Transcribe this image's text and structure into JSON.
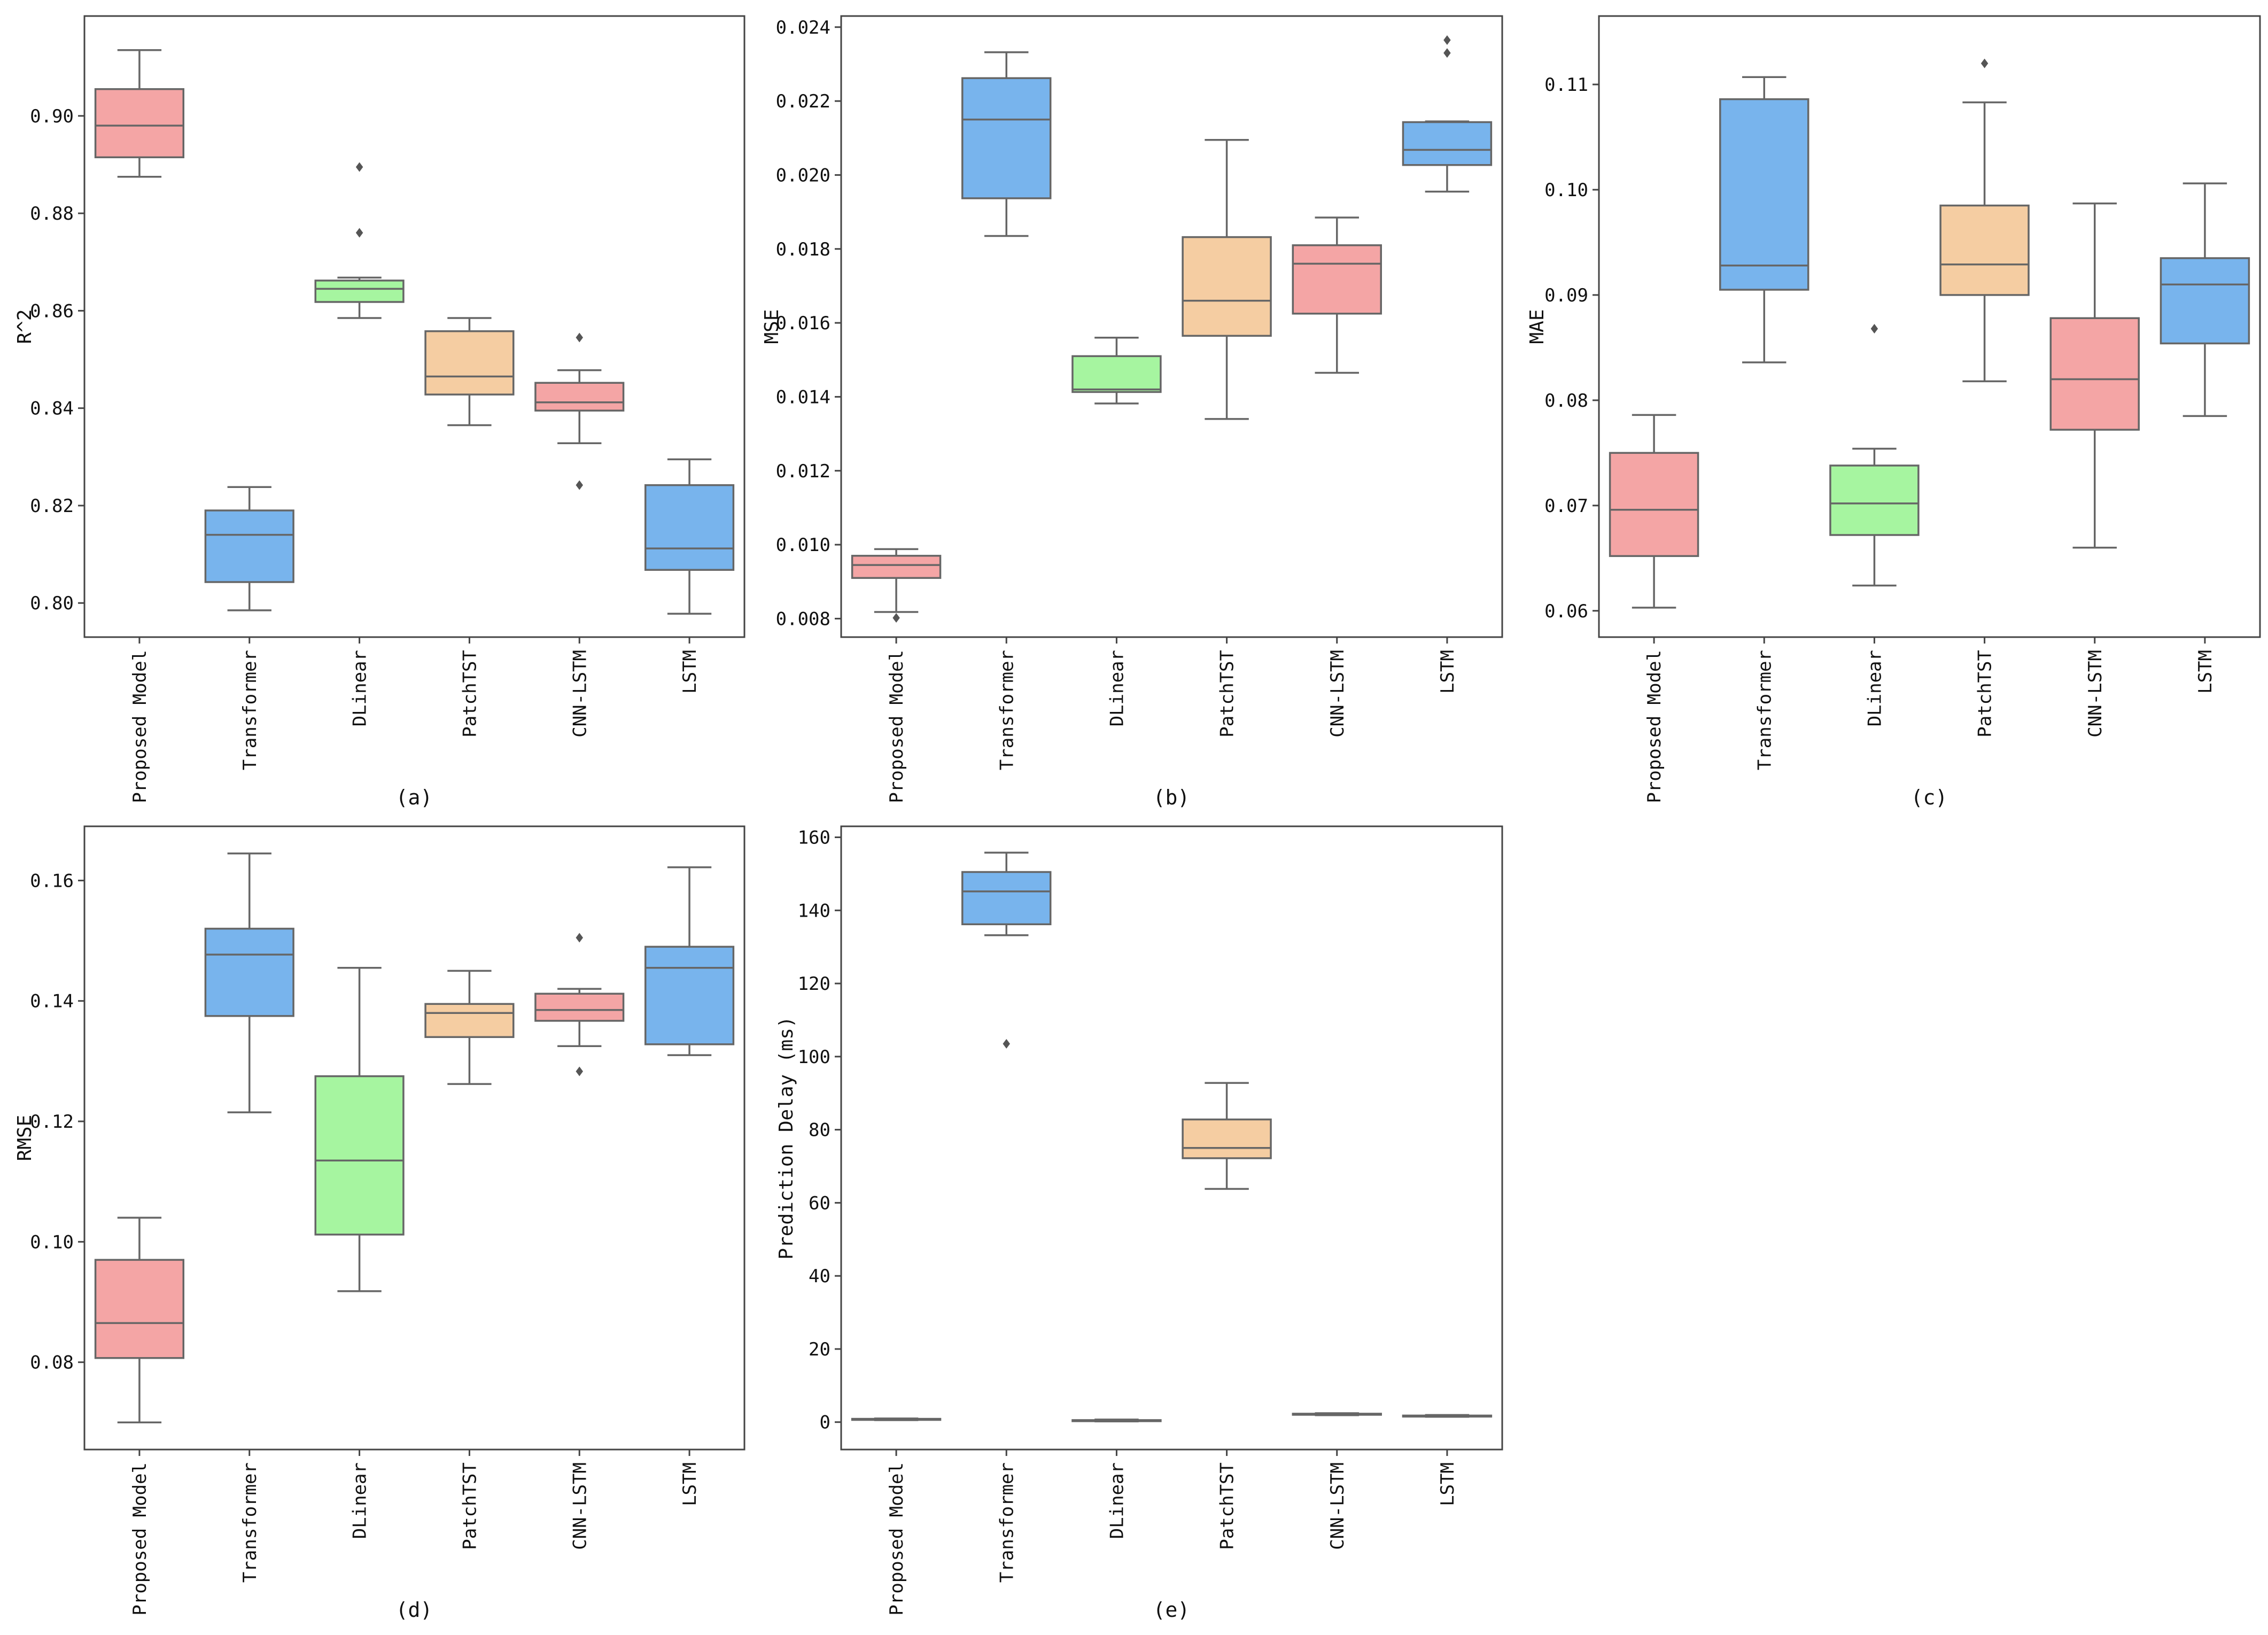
{
  "colors": {
    "red": "#f4a5a5",
    "blue": "#78b4ed",
    "green": "#a6f5a0",
    "orange": "#f5cda2",
    "line": "#666666",
    "frame": "#444444"
  },
  "chart_data": [
    {
      "type": "box",
      "caption": "(a)",
      "ylabel": "R^2",
      "ylim": [
        0.793,
        0.9205
      ],
      "yticks": [
        0.8,
        0.82,
        0.84,
        0.86,
        0.88,
        0.9
      ],
      "ytick_labels": [
        "0.80",
        "0.82",
        "0.84",
        "0.86",
        "0.88",
        "0.90"
      ],
      "categories": [
        "Proposed Model",
        "Transformer",
        "DLinear",
        "PatchTST",
        "CNN-LSTM",
        "LSTM"
      ],
      "boxes": [
        {
          "category": "Proposed Model",
          "color": "red",
          "whislo": 0.8875,
          "q1": 0.8915,
          "med": 0.898,
          "q3": 0.9055,
          "whishi": 0.9135,
          "fliers": []
        },
        {
          "category": "Transformer",
          "color": "blue",
          "whislo": 0.7985,
          "q1": 0.8043,
          "med": 0.814,
          "q3": 0.819,
          "whishi": 0.8238,
          "fliers": []
        },
        {
          "category": "DLinear",
          "color": "green",
          "whislo": 0.8585,
          "q1": 0.8618,
          "med": 0.8645,
          "q3": 0.8662,
          "whishi": 0.8668,
          "fliers": [
            0.8895,
            0.876
          ]
        },
        {
          "category": "PatchTST",
          "color": "orange",
          "whislo": 0.8365,
          "q1": 0.8428,
          "med": 0.8465,
          "q3": 0.8558,
          "whishi": 0.8585,
          "fliers": []
        },
        {
          "category": "CNN-LSTM",
          "color": "red",
          "whislo": 0.8328,
          "q1": 0.8395,
          "med": 0.8412,
          "q3": 0.8452,
          "whishi": 0.8478,
          "fliers": [
            0.8545,
            0.8242
          ]
        },
        {
          "category": "LSTM",
          "color": "blue",
          "whislo": 0.7978,
          "q1": 0.8068,
          "med": 0.8112,
          "q3": 0.8242,
          "whishi": 0.8295,
          "fliers": []
        }
      ]
    },
    {
      "type": "box",
      "caption": "(b)",
      "ylabel": "MSE",
      "ylim": [
        0.0075,
        0.0243
      ],
      "yticks": [
        0.008,
        0.01,
        0.012,
        0.014,
        0.016,
        0.018,
        0.02,
        0.022,
        0.024
      ],
      "ytick_labels": [
        "0.008",
        "0.010",
        "0.012",
        "0.014",
        "0.016",
        "0.018",
        "0.020",
        "0.022",
        "0.024"
      ],
      "categories": [
        "Proposed Model",
        "Transformer",
        "DLinear",
        "PatchTST",
        "CNN-LSTM",
        "LSTM"
      ],
      "boxes": [
        {
          "category": "Proposed Model",
          "color": "red",
          "whislo": 0.00818,
          "q1": 0.0091,
          "med": 0.00945,
          "q3": 0.0097,
          "whishi": 0.00988,
          "fliers": [
            0.00802
          ]
        },
        {
          "category": "Transformer",
          "color": "blue",
          "whislo": 0.01835,
          "q1": 0.01937,
          "med": 0.0215,
          "q3": 0.02262,
          "whishi": 0.02332,
          "fliers": []
        },
        {
          "category": "DLinear",
          "color": "green",
          "whislo": 0.01382,
          "q1": 0.01413,
          "med": 0.0142,
          "q3": 0.0151,
          "whishi": 0.0156,
          "fliers": []
        },
        {
          "category": "PatchTST",
          "color": "orange",
          "whislo": 0.0134,
          "q1": 0.01565,
          "med": 0.0166,
          "q3": 0.01832,
          "whishi": 0.02095,
          "fliers": []
        },
        {
          "category": "CNN-LSTM",
          "color": "red",
          "whislo": 0.01465,
          "q1": 0.01625,
          "med": 0.0176,
          "q3": 0.0181,
          "whishi": 0.01885,
          "fliers": []
        },
        {
          "category": "LSTM",
          "color": "blue",
          "whislo": 0.01955,
          "q1": 0.02027,
          "med": 0.02068,
          "q3": 0.02143,
          "whishi": 0.02145,
          "fliers": [
            0.02365,
            0.0233
          ]
        }
      ]
    },
    {
      "type": "box",
      "caption": "(c)",
      "ylabel": "MAE",
      "ylim": [
        0.0575,
        0.1165
      ],
      "yticks": [
        0.06,
        0.07,
        0.08,
        0.09,
        0.1,
        0.11
      ],
      "ytick_labels": [
        "0.06",
        "0.07",
        "0.08",
        "0.09",
        "0.10",
        "0.11"
      ],
      "categories": [
        "Proposed Model",
        "Transformer",
        "DLinear",
        "PatchTST",
        "CNN-LSTM",
        "LSTM"
      ],
      "boxes": [
        {
          "category": "Proposed Model",
          "color": "red",
          "whislo": 0.0603,
          "q1": 0.0652,
          "med": 0.0696,
          "q3": 0.075,
          "whishi": 0.0786,
          "fliers": []
        },
        {
          "category": "Transformer",
          "color": "blue",
          "whislo": 0.0836,
          "q1": 0.0905,
          "med": 0.0928,
          "q3": 0.1086,
          "whishi": 0.1107,
          "fliers": []
        },
        {
          "category": "DLinear",
          "color": "green",
          "whislo": 0.0624,
          "q1": 0.0672,
          "med": 0.0702,
          "q3": 0.0738,
          "whishi": 0.0754,
          "fliers": [
            0.0868
          ]
        },
        {
          "category": "PatchTST",
          "color": "orange",
          "whislo": 0.0818,
          "q1": 0.09,
          "med": 0.0929,
          "q3": 0.0985,
          "whishi": 0.1083,
          "fliers": [
            0.112
          ]
        },
        {
          "category": "CNN-LSTM",
          "color": "red",
          "whislo": 0.066,
          "q1": 0.0772,
          "med": 0.082,
          "q3": 0.0878,
          "whishi": 0.0987,
          "fliers": []
        },
        {
          "category": "LSTM",
          "color": "blue",
          "whislo": 0.0785,
          "q1": 0.0854,
          "med": 0.091,
          "q3": 0.0935,
          "whishi": 0.1006,
          "fliers": []
        }
      ]
    },
    {
      "type": "box",
      "caption": "(d)",
      "ylabel": "RMSE",
      "ylim": [
        0.0655,
        0.169
      ],
      "yticks": [
        0.08,
        0.1,
        0.12,
        0.14,
        0.16
      ],
      "ytick_labels": [
        "0.08",
        "0.10",
        "0.12",
        "0.14",
        "0.16"
      ],
      "categories": [
        "Proposed Model",
        "Transformer",
        "DLinear",
        "PatchTST",
        "CNN-LSTM",
        "LSTM"
      ],
      "boxes": [
        {
          "category": "Proposed Model",
          "color": "red",
          "whislo": 0.07,
          "q1": 0.0807,
          "med": 0.0865,
          "q3": 0.097,
          "whishi": 0.104,
          "fliers": []
        },
        {
          "category": "Transformer",
          "color": "blue",
          "whislo": 0.1215,
          "q1": 0.1375,
          "med": 0.1477,
          "q3": 0.152,
          "whishi": 0.1645,
          "fliers": []
        },
        {
          "category": "DLinear",
          "color": "green",
          "whislo": 0.0918,
          "q1": 0.1012,
          "med": 0.1135,
          "q3": 0.1275,
          "whishi": 0.1455,
          "fliers": []
        },
        {
          "category": "PatchTST",
          "color": "orange",
          "whislo": 0.1262,
          "q1": 0.134,
          "med": 0.138,
          "q3": 0.1395,
          "whishi": 0.145,
          "fliers": []
        },
        {
          "category": "CNN-LSTM",
          "color": "red",
          "whislo": 0.1325,
          "q1": 0.1367,
          "med": 0.1385,
          "q3": 0.1412,
          "whishi": 0.142,
          "fliers": [
            0.1505,
            0.1283
          ]
        },
        {
          "category": "LSTM",
          "color": "blue",
          "whislo": 0.131,
          "q1": 0.1328,
          "med": 0.1455,
          "q3": 0.149,
          "whishi": 0.1622,
          "fliers": []
        }
      ]
    },
    {
      "type": "box",
      "caption": "(e)",
      "ylabel": "Prediction Delay (ms)",
      "ylim": [
        -7.5,
        163
      ],
      "yticks": [
        0,
        20,
        40,
        60,
        80,
        100,
        120,
        140,
        160
      ],
      "ytick_labels": [
        "0",
        "20",
        "40",
        "60",
        "80",
        "100",
        "120",
        "140",
        "160"
      ],
      "categories": [
        "Proposed Model",
        "Transformer",
        "DLinear",
        "PatchTST",
        "CNN-LSTM",
        "LSTM"
      ],
      "boxes": [
        {
          "category": "Proposed Model",
          "color": "red",
          "whislo": 0.55,
          "q1": 0.7,
          "med": 0.8,
          "q3": 0.9,
          "whishi": 1.0,
          "fliers": []
        },
        {
          "category": "Transformer",
          "color": "blue",
          "whislo": 133.2,
          "q1": 136.2,
          "med": 145.2,
          "q3": 150.5,
          "whishi": 155.8,
          "fliers": [
            103.5
          ]
        },
        {
          "category": "DLinear",
          "color": "green",
          "whislo": 0.2,
          "q1": 0.35,
          "med": 0.45,
          "q3": 0.55,
          "whishi": 0.7,
          "fliers": []
        },
        {
          "category": "PatchTST",
          "color": "orange",
          "whislo": 63.8,
          "q1": 72.2,
          "med": 75.0,
          "q3": 82.8,
          "whishi": 92.8,
          "fliers": []
        },
        {
          "category": "CNN-LSTM",
          "color": "red",
          "whislo": 1.9,
          "q1": 2.1,
          "med": 2.2,
          "q3": 2.3,
          "whishi": 2.45,
          "fliers": []
        },
        {
          "category": "LSTM",
          "color": "blue",
          "whislo": 1.45,
          "q1": 1.6,
          "med": 1.7,
          "q3": 1.8,
          "whishi": 1.95,
          "fliers": []
        }
      ]
    }
  ]
}
